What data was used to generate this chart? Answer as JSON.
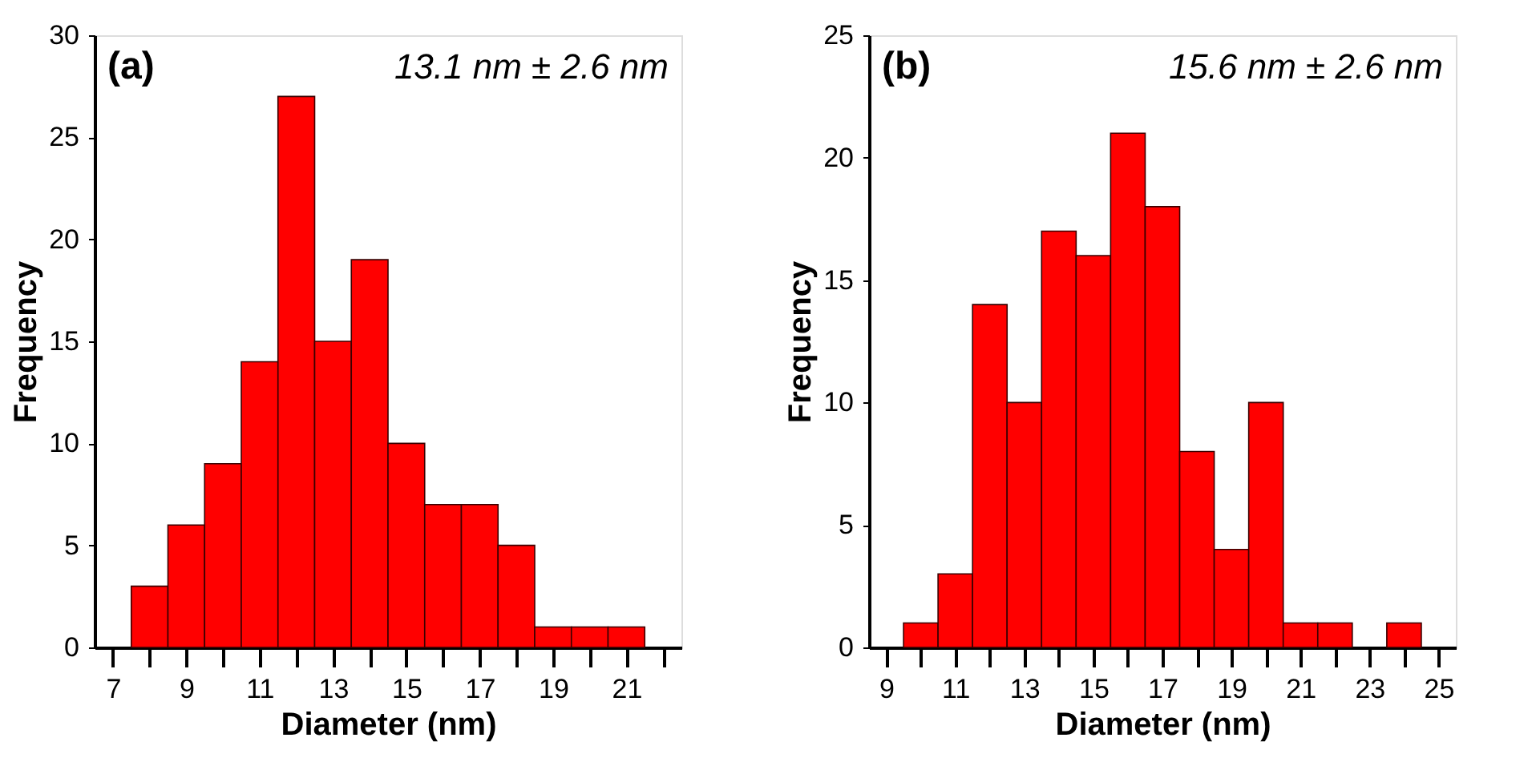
{
  "chart_data": [
    {
      "type": "histogram",
      "bins": [
        7.5,
        8.5,
        9.5,
        10.5,
        11.5,
        12.5,
        13.5,
        14.5,
        15.5,
        16.5,
        17.5,
        18.5,
        19.5,
        20.5,
        21.5
      ],
      "values": [
        3,
        6,
        9,
        14,
        27,
        15,
        19,
        10,
        7,
        7,
        5,
        1,
        1,
        1
      ],
      "color": "#ff0000",
      "xlabel": "Diameter (nm)",
      "ylabel": "Frequency",
      "xlim": [
        6.5,
        22.5
      ],
      "xticks": [
        7,
        {
          "value": 8,
          "label": null
        },
        9,
        {
          "value": 10,
          "label": null
        },
        11,
        {
          "value": 12,
          "label": null
        },
        13,
        {
          "value": 14,
          "label": null
        },
        15,
        {
          "value": 16,
          "label": null
        },
        17,
        {
          "value": 18,
          "label": null
        },
        19,
        {
          "value": 20,
          "label": null
        },
        21,
        {
          "value": 22,
          "label": null
        }
      ],
      "ylim": [
        0,
        30
      ],
      "yticks": [
        0,
        5,
        10,
        15,
        20,
        25,
        30
      ],
      "grid": false,
      "annotations": [
        "(a)",
        "13.1 nm ± 2.6 nm"
      ]
    },
    {
      "type": "histogram",
      "bins": [
        9.5,
        10.5,
        11.5,
        12.5,
        13.5,
        14.5,
        15.5,
        16.5,
        17.5,
        18.5,
        19.5,
        20.5,
        21.5,
        22.5,
        23.5,
        24.5
      ],
      "values": [
        1,
        3,
        14,
        10,
        17,
        16,
        21,
        18,
        8,
        4,
        10,
        1,
        1,
        0,
        1
      ],
      "color": "#ff0000",
      "xlabel": "Diameter (nm)",
      "ylabel": "Frequency",
      "xlim": [
        8.5,
        25.5
      ],
      "xticks": [
        9,
        {
          "value": 10,
          "label": null
        },
        11,
        {
          "value": 12,
          "label": null
        },
        13,
        {
          "value": 14,
          "label": null
        },
        15,
        {
          "value": 16,
          "label": null
        },
        17,
        {
          "value": 18,
          "label": null
        },
        19,
        {
          "value": 20,
          "label": null
        },
        21,
        {
          "value": 22,
          "label": null
        },
        23,
        {
          "value": 24,
          "label": null
        },
        25
      ],
      "ylim": [
        0,
        25
      ],
      "yticks": [
        0,
        5,
        10,
        15,
        20,
        25
      ],
      "grid": false,
      "annotations": [
        "(b)",
        "15.6 nm ± 2.6 nm"
      ]
    }
  ]
}
